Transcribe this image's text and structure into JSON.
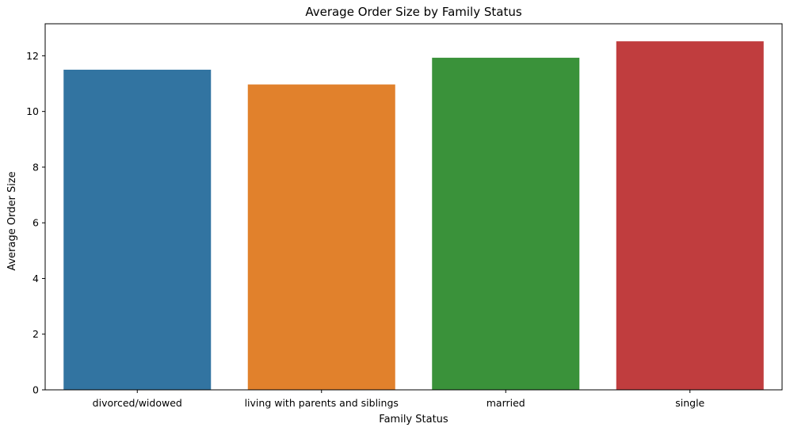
{
  "chart_data": {
    "type": "bar",
    "title": "Average Order Size by Family Status",
    "xlabel": "Family Status",
    "ylabel": "Average Order Size",
    "categories": [
      "divorced/widowed",
      "living with parents and siblings",
      "married",
      "single"
    ],
    "values": [
      11.5,
      10.97,
      11.93,
      12.52
    ],
    "colors": [
      "#3274a1",
      "#e1812c",
      "#3a923a",
      "#c03d3e"
    ],
    "ylim": [
      0,
      13.15
    ],
    "yticks": [
      0,
      2,
      4,
      6,
      8,
      10,
      12
    ],
    "ytick_labels": [
      "0",
      "2",
      "4",
      "6",
      "8",
      "10",
      "12"
    ],
    "grid": false,
    "legend": "none"
  }
}
